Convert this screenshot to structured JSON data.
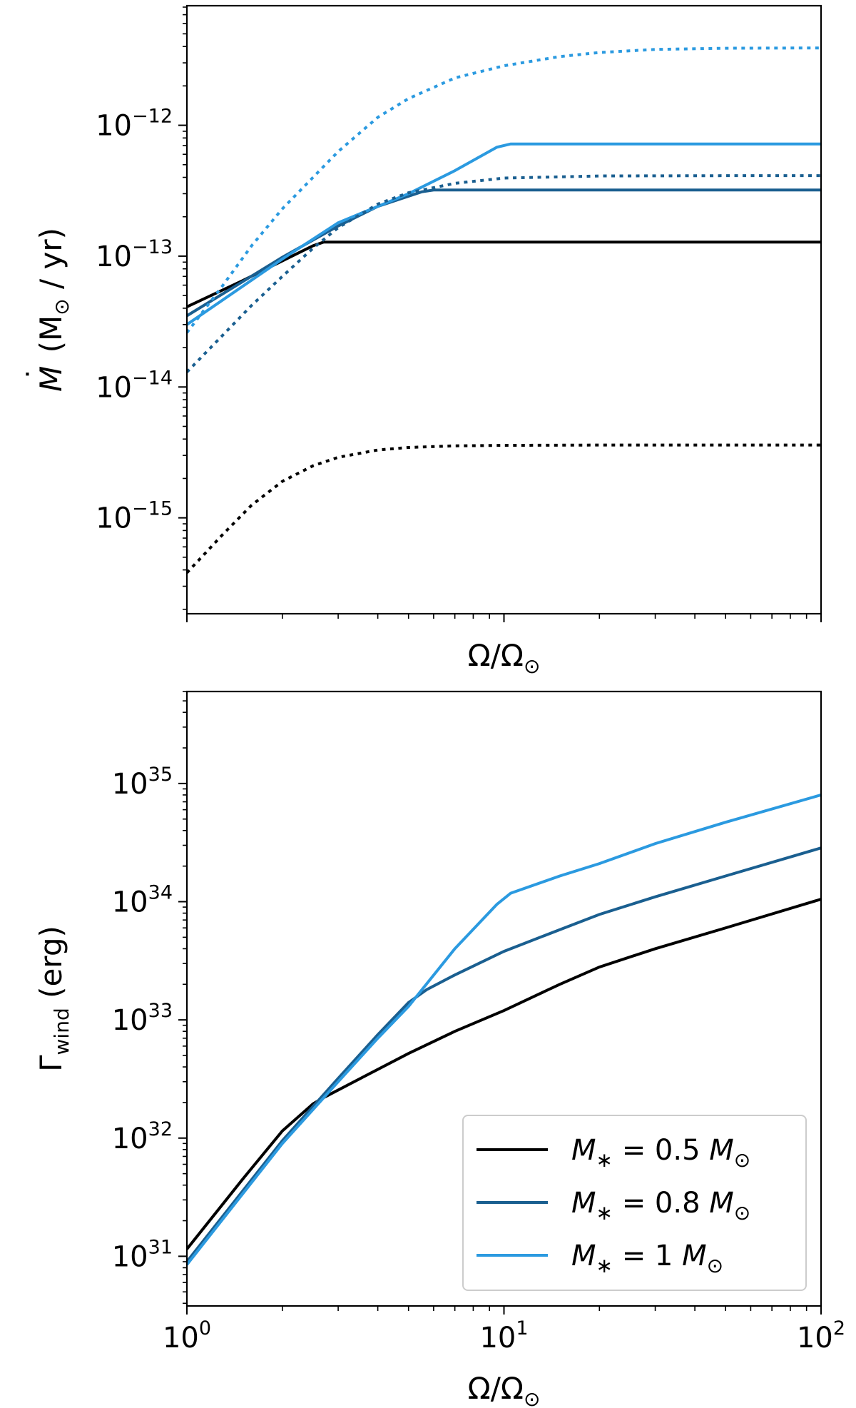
{
  "chart_data": [
    {
      "type": "line",
      "xscale": "log",
      "yscale": "log",
      "xlim": [
        1,
        100
      ],
      "ylim": [
        1.85e-16,
        8.2e-12
      ],
      "xlabel": "Ω/Ω",
      "xlabel_sub": "⊙",
      "ylabel_main": "M",
      "ylabel_accent": "˙",
      "ylabel_rest": " (M",
      "ylabel_sub": "⊙",
      "ylabel_tail": " / yr)",
      "yticks": [
        {
          "value": 1e-15,
          "base": "10",
          "exp": "−15"
        },
        {
          "value": 1e-14,
          "base": "10",
          "exp": "−14"
        },
        {
          "value": 1e-13,
          "base": "10",
          "exp": "−13"
        },
        {
          "value": 1e-12,
          "base": "10",
          "exp": "−12"
        }
      ],
      "xticks": [],
      "series": [
        {
          "name": "M* = 0.5 M⊙",
          "style": "solid",
          "color": "#000000",
          "x": [
            1,
            1.5,
            2,
            2.5,
            2.7,
            100
          ],
          "y": [
            4.1e-14,
            6.5e-14,
            9.2e-14,
            1.2e-13,
            1.28e-13,
            1.28e-13
          ]
        },
        {
          "name": "M* = 0.8 M⊙",
          "style": "solid",
          "color": "#1a5f90",
          "x": [
            1,
            2,
            3,
            4,
            5.5,
            6,
            100
          ],
          "y": [
            3.5e-14,
            9.8e-14,
            1.7e-13,
            2.4e-13,
            3.1e-13,
            3.2e-13,
            3.2e-13
          ]
        },
        {
          "name": "M* = 1 M⊙",
          "style": "solid",
          "color": "#2b9ae0",
          "x": [
            1,
            2,
            3,
            5,
            7,
            9.5,
            10.5,
            100
          ],
          "y": [
            3e-14,
            9.5e-14,
            1.8e-13,
            3e-13,
            4.5e-13,
            6.8e-13,
            7.2e-13,
            7.2e-13
          ]
        },
        {
          "name": "M* = 0.5 M⊙ (dotted)",
          "style": "dotted",
          "color": "#000000",
          "x": [
            1,
            1.3,
            1.6,
            2,
            2.5,
            3,
            4,
            5,
            7,
            10,
            20,
            50,
            100
          ],
          "y": [
            3.8e-16,
            7.5e-16,
            1.25e-15,
            1.9e-15,
            2.5e-15,
            2.9e-15,
            3.3e-15,
            3.45e-15,
            3.55e-15,
            3.58e-15,
            3.6e-15,
            3.6e-15,
            3.6e-15
          ]
        },
        {
          "name": "M* = 0.8 M⊙ (dotted)",
          "style": "dotted",
          "color": "#1a5f90",
          "x": [
            1,
            1.3,
            1.6,
            2,
            2.5,
            3,
            4,
            5,
            7,
            10,
            20,
            50,
            100
          ],
          "y": [
            1.3e-14,
            2.5e-14,
            4.2e-14,
            7e-14,
            1.15e-13,
            1.65e-13,
            2.5e-13,
            3.05e-13,
            3.6e-13,
            3.95e-13,
            4.1e-13,
            4.12e-13,
            4.12e-13
          ]
        },
        {
          "name": "M* = 1 M⊙ (dotted)",
          "style": "dotted",
          "color": "#2b9ae0",
          "x": [
            1,
            1.3,
            1.6,
            2,
            2.5,
            3,
            4,
            5,
            7,
            10,
            15,
            20,
            30,
            50,
            100
          ],
          "y": [
            2.6e-14,
            6e-14,
            1.2e-13,
            2.3e-13,
            4e-13,
            6.3e-13,
            1.15e-12,
            1.6e-12,
            2.3e-12,
            2.85e-12,
            3.35e-12,
            3.6e-12,
            3.8e-12,
            3.88e-12,
            3.9e-12
          ]
        }
      ]
    },
    {
      "type": "line",
      "xscale": "log",
      "yscale": "log",
      "xlim": [
        1,
        100
      ],
      "ylim": [
        3.8e+30,
        6e+35
      ],
      "xlabel": "Ω/Ω",
      "xlabel_sub": "⊙",
      "ylabel_main": "Γ",
      "ylabel_sub": "wind",
      "ylabel_tail": " (erg)",
      "yticks": [
        {
          "value": 1e+31,
          "base": "10",
          "exp": "31"
        },
        {
          "value": 1e+32,
          "base": "10",
          "exp": "32"
        },
        {
          "value": 1e+33,
          "base": "10",
          "exp": "33"
        },
        {
          "value": 1e+34,
          "base": "10",
          "exp": "34"
        },
        {
          "value": 1e+35,
          "base": "10",
          "exp": "35"
        }
      ],
      "xticks": [
        {
          "value": 1,
          "base": "10",
          "exp": "0"
        },
        {
          "value": 10,
          "base": "10",
          "exp": "1"
        },
        {
          "value": 100,
          "base": "10",
          "exp": "2"
        }
      ],
      "legend": {
        "position": "lower-right",
        "entries": [
          {
            "prefix": "M",
            "sub": "∗",
            "mid": " = 0.5 ",
            "unit": "M",
            "unit_sub": "⊙",
            "color": "#000000"
          },
          {
            "prefix": "M",
            "sub": "∗",
            "mid": " = 0.8 ",
            "unit": "M",
            "unit_sub": "⊙",
            "color": "#1a5f90"
          },
          {
            "prefix": "M",
            "sub": "∗",
            "mid": " = 1 ",
            "unit": "M",
            "unit_sub": "⊙",
            "color": "#2b9ae0"
          }
        ]
      },
      "series": [
        {
          "name": "M* = 0.5 M⊙",
          "style": "solid",
          "color": "#000000",
          "x": [
            1,
            1.5,
            2,
            2.5,
            2.7,
            3,
            5,
            7,
            10,
            15,
            20,
            30,
            50,
            100
          ],
          "y": [
            1.15e+31,
            4.5e+31,
            1.15e+32,
            1.95e+32,
            2.2e+32,
            2.55e+32,
            5.2e+32,
            8e+32,
            1.2e+33,
            2e+33,
            2.8e+33,
            4e+33,
            6e+33,
            1.05e+34
          ]
        },
        {
          "name": "M* = 0.8 M⊙",
          "style": "solid",
          "color": "#1a5f90",
          "x": [
            1,
            2,
            3,
            4,
            5,
            5.7,
            7,
            10,
            15,
            20,
            30,
            50,
            100
          ],
          "y": [
            9e+30,
            9.5e+31,
            3.2e+32,
            7.5e+32,
            1.4e+33,
            1.8e+33,
            2.4e+33,
            3.8e+33,
            5.8e+33,
            7.8e+33,
            1.1e+34,
            1.65e+34,
            2.85e+34
          ]
        },
        {
          "name": "M* = 1 M⊙",
          "style": "solid",
          "color": "#2b9ae0",
          "x": [
            1,
            2,
            3,
            4,
            5,
            7,
            9.5,
            10.5,
            15,
            20,
            30,
            50,
            100
          ],
          "y": [
            8.5e+30,
            9e+31,
            3e+32,
            7e+32,
            1.3e+33,
            4e+33,
            9.5e+33,
            1.18e+34,
            1.65e+34,
            2.1e+34,
            3.1e+34,
            4.7e+34,
            8e+34
          ]
        }
      ]
    }
  ]
}
